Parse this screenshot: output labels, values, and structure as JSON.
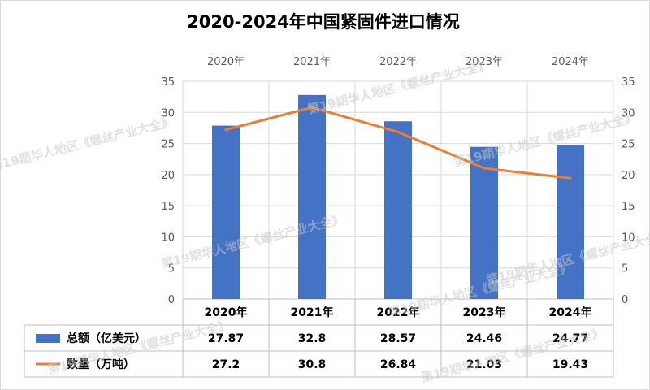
{
  "chart_data": {
    "type": "bar",
    "title": "2020-2024年中国紧固件进口情况",
    "categories": [
      "2020年",
      "2021年",
      "2022年",
      "2023年",
      "2024年"
    ],
    "series": [
      {
        "name": "总额（亿美元）",
        "type": "bar",
        "axis": "left",
        "color": "#4472C4",
        "values": [
          27.87,
          32.8,
          28.57,
          24.46,
          24.77
        ]
      },
      {
        "name": "数量（万吨）",
        "type": "line",
        "axis": "right",
        "color": "#ED7D31",
        "values": [
          27.2,
          30.8,
          26.84,
          21.03,
          19.43
        ]
      }
    ],
    "table_values": [
      [
        "27.87",
        "32.8",
        "28.57",
        "24.46",
        "24.77"
      ],
      [
        "27.2",
        "30.8",
        "26.84",
        "21.03",
        "19.43"
      ]
    ],
    "ylim": [
      0,
      35
    ],
    "y2lim": [
      0,
      35
    ],
    "yticks": [
      "0",
      "5",
      "10",
      "15",
      "20",
      "25",
      "30",
      "35"
    ],
    "grid": true,
    "legend": "data-table"
  },
  "watermark": "第19期华人地区《螺丝产业大全》"
}
